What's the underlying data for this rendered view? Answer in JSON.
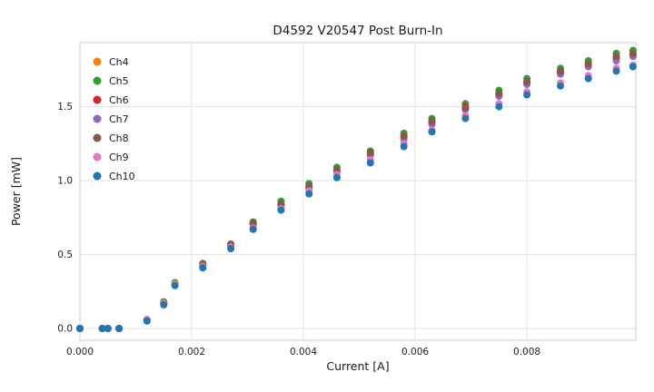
{
  "chart_data": {
    "type": "scatter",
    "title": "D4592 V20547 Post Burn-In",
    "xlabel": "Current [A]",
    "ylabel": "Power [mW]",
    "xlim": [
      0,
      0.00995
    ],
    "ylim": [
      -0.08,
      1.933
    ],
    "grid": true,
    "legend_position": "upper-left",
    "xticks": [
      0.0,
      0.002,
      0.004,
      0.006,
      0.008
    ],
    "xtick_labels": [
      "0.000",
      "0.002",
      "0.004",
      "0.006",
      "0.008"
    ],
    "yticks": [
      0.0,
      0.5,
      1.0,
      1.5
    ],
    "ytick_labels": [
      "0.0",
      "0.5",
      "1.0",
      "1.5"
    ],
    "x": [
      0.0,
      0.0004,
      0.0005,
      0.0007,
      0.0012,
      0.0015,
      0.0017,
      0.0022,
      0.0027,
      0.0031,
      0.0036,
      0.0041,
      0.0046,
      0.0052,
      0.0058,
      0.0063,
      0.0069,
      0.0075,
      0.008,
      0.0086,
      0.0091,
      0.0096,
      0.0099
    ],
    "series": [
      {
        "name": "Ch4",
        "color": "#ff7f0e",
        "values": [
          0.0,
          0.0,
          0.0,
          0.0,
          0.06,
          0.17,
          0.3,
          0.43,
          0.56,
          0.7,
          0.83,
          0.95,
          1.07,
          1.18,
          1.29,
          1.39,
          1.49,
          1.58,
          1.66,
          1.73,
          1.78,
          1.83,
          1.85
        ]
      },
      {
        "name": "Ch5",
        "color": "#2ca02c",
        "values": [
          0.0,
          0.0,
          0.0,
          0.0,
          0.06,
          0.18,
          0.31,
          0.44,
          0.57,
          0.72,
          0.86,
          0.98,
          1.09,
          1.2,
          1.32,
          1.42,
          1.52,
          1.61,
          1.69,
          1.76,
          1.81,
          1.86,
          1.88
        ]
      },
      {
        "name": "Ch6",
        "color": "#d62728",
        "values": [
          0.0,
          0.0,
          0.0,
          0.0,
          0.06,
          0.17,
          0.3,
          0.43,
          0.56,
          0.71,
          0.84,
          0.96,
          1.07,
          1.18,
          1.3,
          1.4,
          1.5,
          1.58,
          1.66,
          1.73,
          1.78,
          1.83,
          1.85
        ]
      },
      {
        "name": "Ch7",
        "color": "#9467bd",
        "values": [
          0.0,
          0.0,
          0.0,
          0.0,
          0.06,
          0.17,
          0.3,
          0.43,
          0.56,
          0.7,
          0.83,
          0.95,
          1.06,
          1.17,
          1.28,
          1.38,
          1.48,
          1.57,
          1.65,
          1.72,
          1.77,
          1.81,
          1.84
        ]
      },
      {
        "name": "Ch8",
        "color": "#8c564b",
        "values": [
          0.0,
          0.0,
          0.0,
          0.0,
          0.06,
          0.17,
          0.3,
          0.43,
          0.57,
          0.71,
          0.84,
          0.96,
          1.07,
          1.19,
          1.3,
          1.4,
          1.49,
          1.59,
          1.67,
          1.74,
          1.79,
          1.84,
          1.86
        ]
      },
      {
        "name": "Ch9",
        "color": "#e377c2",
        "values": [
          0.0,
          0.0,
          0.0,
          0.0,
          0.06,
          0.17,
          0.3,
          0.42,
          0.55,
          0.68,
          0.81,
          0.93,
          1.04,
          1.14,
          1.25,
          1.34,
          1.44,
          1.52,
          1.6,
          1.66,
          1.71,
          1.76,
          1.78
        ]
      },
      {
        "name": "Ch10",
        "color": "#1f77b4",
        "values": [
          0.0,
          0.0,
          0.0,
          0.0,
          0.05,
          0.16,
          0.29,
          0.41,
          0.54,
          0.67,
          0.8,
          0.91,
          1.02,
          1.12,
          1.23,
          1.33,
          1.42,
          1.5,
          1.58,
          1.64,
          1.69,
          1.74,
          1.77
        ]
      }
    ]
  }
}
